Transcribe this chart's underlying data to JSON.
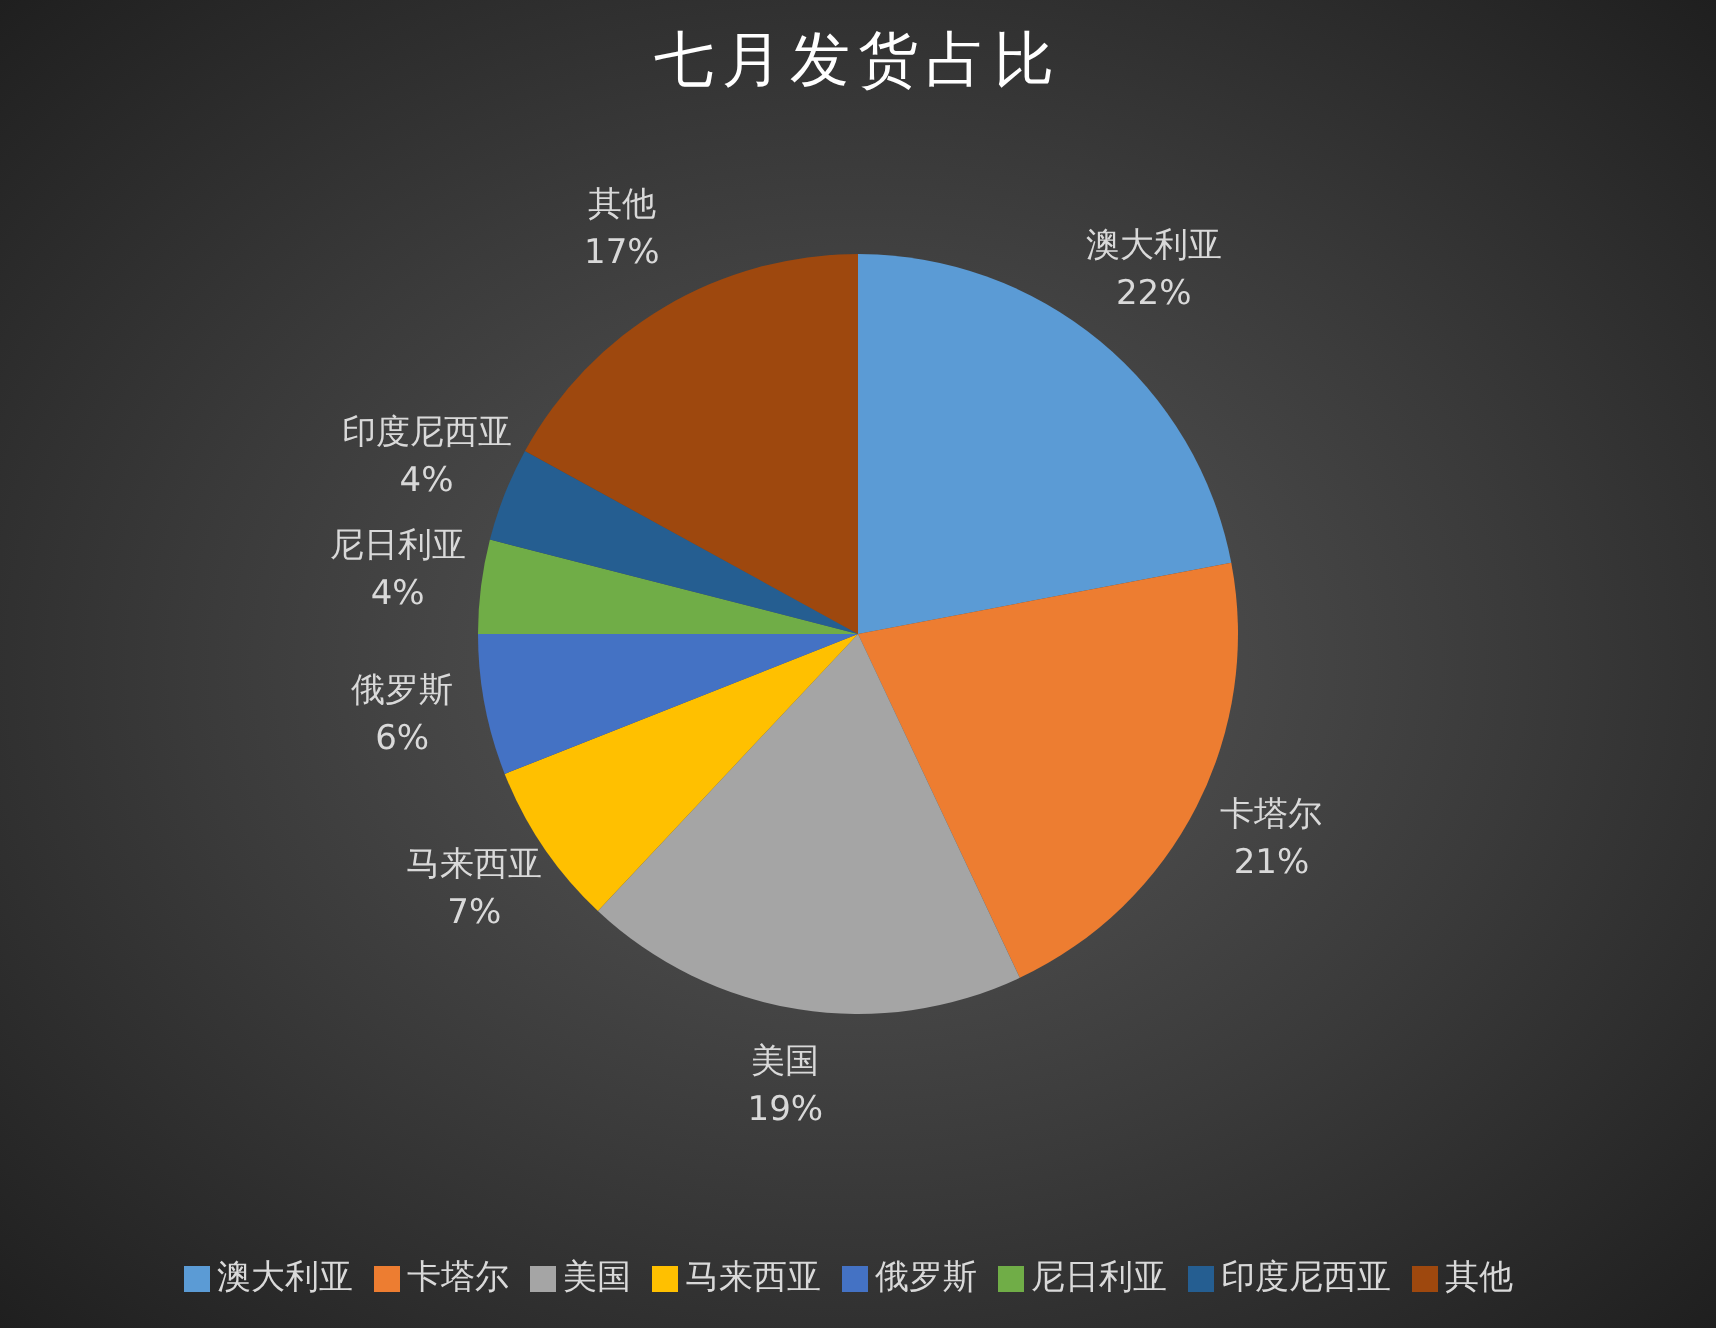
{
  "chart_data": {
    "type": "pie",
    "title": "七月发货占比",
    "categories": [
      "澳大利亚",
      "卡塔尔",
      "美国",
      "马来西亚",
      "俄罗斯",
      "尼日利亚",
      "印度尼西亚",
      "其他"
    ],
    "values": [
      22,
      21,
      19,
      7,
      6,
      4,
      4,
      17
    ],
    "value_labels": [
      "22%",
      "21%",
      "19%",
      "7%",
      "6%",
      "4%",
      "4%",
      "17%"
    ],
    "colors": [
      "#5b9bd5",
      "#ed7d31",
      "#a5a5a5",
      "#ffc000",
      "#4472c4",
      "#70ad47",
      "#255e91",
      "#9e480e"
    ],
    "legend": "bottom"
  }
}
